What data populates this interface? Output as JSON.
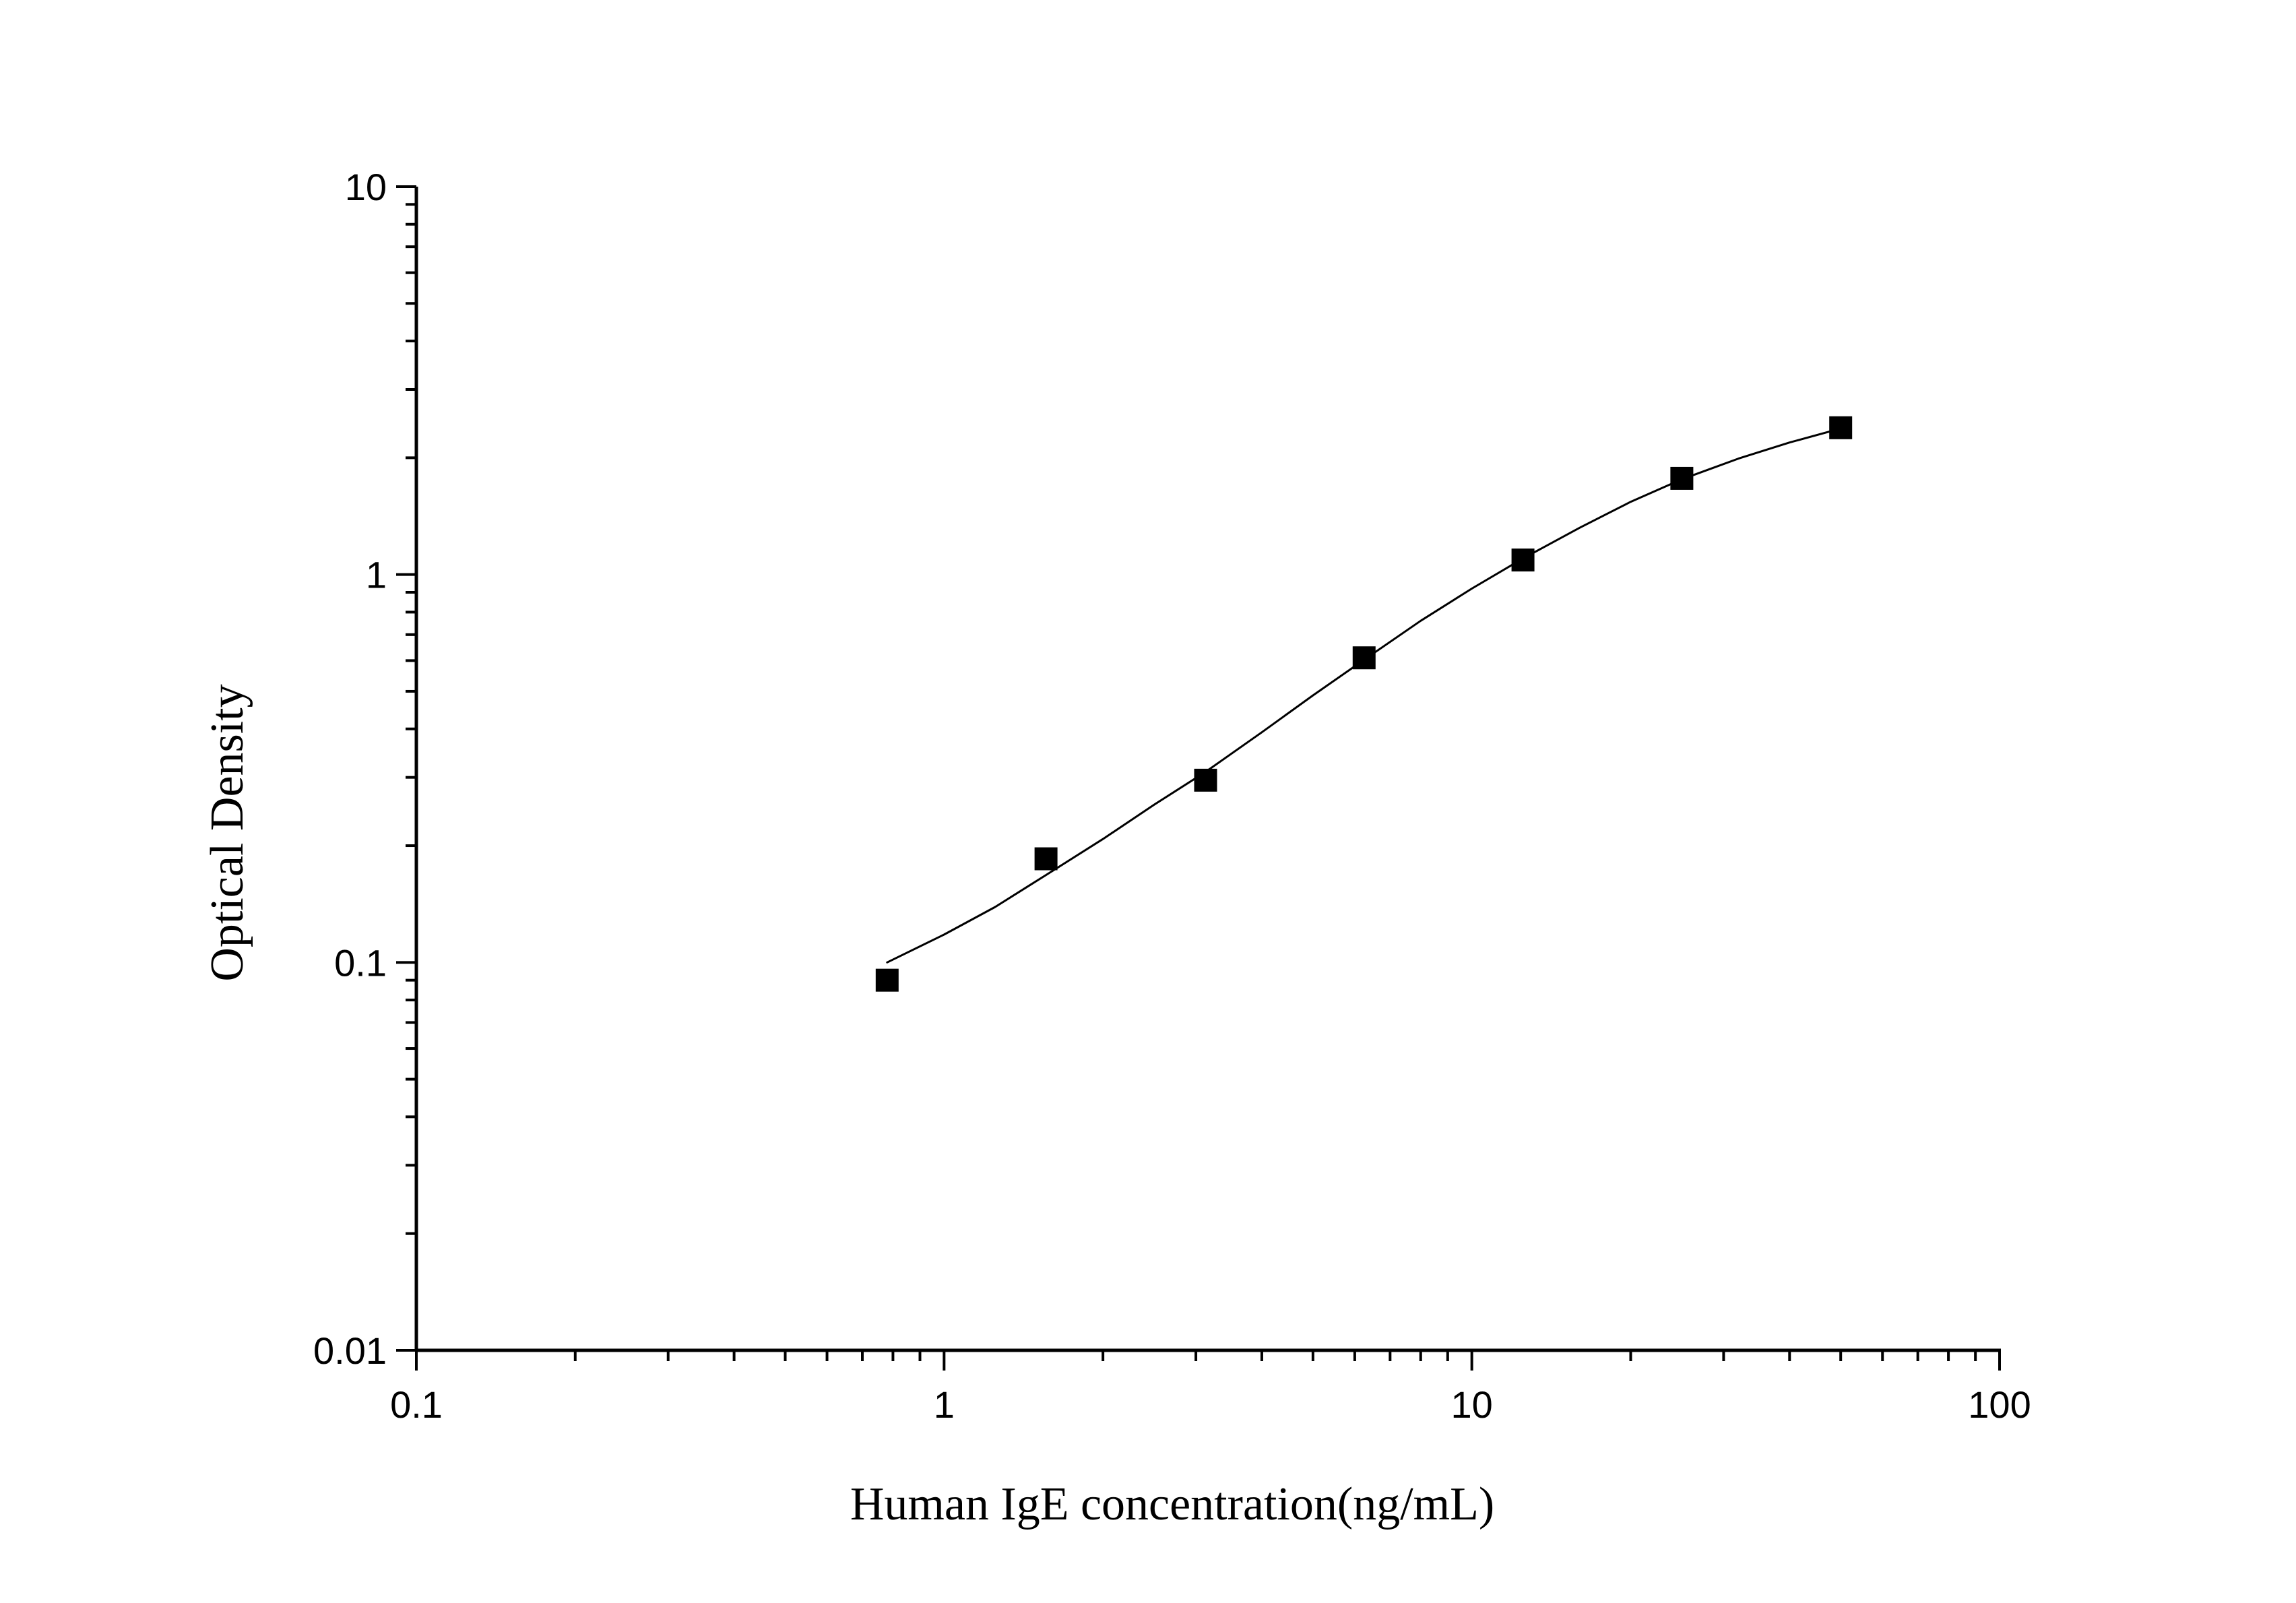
{
  "chart_data": {
    "type": "scatter",
    "xlabel": "Human IgE concentration(ng/mL)",
    "ylabel": "Optical Density",
    "x_scale": "log",
    "y_scale": "log",
    "xlim": [
      0.1,
      100
    ],
    "ylim": [
      0.01,
      10
    ],
    "x_ticks": [
      {
        "value": 0.1,
        "label": "0.1"
      },
      {
        "value": 1,
        "label": "1"
      },
      {
        "value": 10,
        "label": "10"
      },
      {
        "value": 100,
        "label": "100"
      }
    ],
    "y_ticks": [
      {
        "value": 0.01,
        "label": "0.01"
      },
      {
        "value": 0.1,
        "label": "0.1"
      },
      {
        "value": 1,
        "label": "1"
      },
      {
        "value": 10,
        "label": "10"
      }
    ],
    "grid": false,
    "series": [
      {
        "marker": "square",
        "color": "#000000",
        "points": [
          {
            "x": 0.78,
            "y": 0.09
          },
          {
            "x": 1.56,
            "y": 0.185
          },
          {
            "x": 3.13,
            "y": 0.295
          },
          {
            "x": 6.25,
            "y": 0.61
          },
          {
            "x": 12.5,
            "y": 1.09
          },
          {
            "x": 25,
            "y": 1.77
          },
          {
            "x": 50,
            "y": 2.39
          }
        ]
      }
    ],
    "fit_curve": {
      "color": "#000000",
      "points": [
        {
          "x": 0.78,
          "y": 0.1
        },
        {
          "x": 1.0,
          "y": 0.118
        },
        {
          "x": 1.25,
          "y": 0.139
        },
        {
          "x": 1.56,
          "y": 0.168
        },
        {
          "x": 2.0,
          "y": 0.208
        },
        {
          "x": 2.5,
          "y": 0.255
        },
        {
          "x": 3.13,
          "y": 0.31
        },
        {
          "x": 4.0,
          "y": 0.392
        },
        {
          "x": 5.0,
          "y": 0.488
        },
        {
          "x": 6.25,
          "y": 0.603
        },
        {
          "x": 8.0,
          "y": 0.76
        },
        {
          "x": 10.0,
          "y": 0.92
        },
        {
          "x": 12.5,
          "y": 1.1
        },
        {
          "x": 16.0,
          "y": 1.32
        },
        {
          "x": 20.0,
          "y": 1.54
        },
        {
          "x": 25.0,
          "y": 1.76
        },
        {
          "x": 32.0,
          "y": 1.99
        },
        {
          "x": 40.0,
          "y": 2.19
        },
        {
          "x": 50.0,
          "y": 2.38
        }
      ]
    }
  }
}
